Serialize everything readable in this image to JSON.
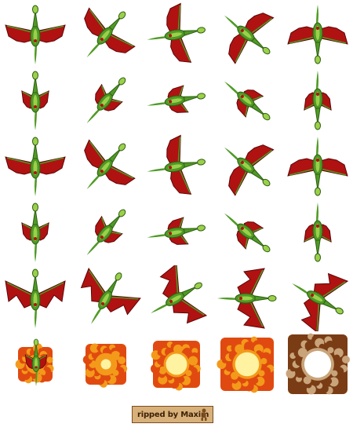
{
  "sprite_sheet": {
    "columns": 5,
    "rows": 6,
    "colors": {
      "background": "#ffffff",
      "wing": "#b01212",
      "wing_dark": "#5e0606",
      "body": "#4f9a25",
      "body_light": "#9bd04a",
      "fire_outer": "#e04a10",
      "fire_mid": "#f39a1a",
      "fire_core": "#fff2a0",
      "ash": "#7a3c14"
    },
    "frames": [
      {
        "kind": "dragon",
        "angle": 0
      },
      {
        "kind": "dragon",
        "angle": 40
      },
      {
        "kind": "dragon",
        "angle": 80
      },
      {
        "kind": "dragon",
        "angle": 130
      },
      {
        "kind": "dragon",
        "angle": 180
      },
      {
        "kind": "dragon-folded",
        "angle": 0
      },
      {
        "kind": "dragon-folded",
        "angle": 40
      },
      {
        "kind": "dragon-folded",
        "angle": 80
      },
      {
        "kind": "dragon-folded",
        "angle": 130
      },
      {
        "kind": "dragon-folded",
        "angle": 180
      },
      {
        "kind": "dragon",
        "angle": 0
      },
      {
        "kind": "dragon",
        "angle": 40
      },
      {
        "kind": "dragon",
        "angle": 80
      },
      {
        "kind": "dragon",
        "angle": 130
      },
      {
        "kind": "dragon",
        "angle": 180
      },
      {
        "kind": "dragon-folded",
        "angle": 0
      },
      {
        "kind": "dragon-folded",
        "angle": 40
      },
      {
        "kind": "dragon-folded",
        "angle": 80
      },
      {
        "kind": "dragon-folded",
        "angle": 130
      },
      {
        "kind": "dragon-folded",
        "angle": 180
      },
      {
        "kind": "dragon-rear",
        "angle": 0
      },
      {
        "kind": "dragon-rear",
        "angle": 30
      },
      {
        "kind": "dragon-rear",
        "angle": 60
      },
      {
        "kind": "dragon-rear",
        "angle": 90
      },
      {
        "kind": "dragon-rear",
        "angle": 120
      },
      {
        "kind": "explosion",
        "stage": 1
      },
      {
        "kind": "explosion",
        "stage": 2
      },
      {
        "kind": "explosion",
        "stage": 3
      },
      {
        "kind": "explosion",
        "stage": 4
      },
      {
        "kind": "explosion",
        "stage": 5
      }
    ]
  },
  "credit": {
    "text": "ripped by Maxim",
    "icon": "figure-icon"
  }
}
